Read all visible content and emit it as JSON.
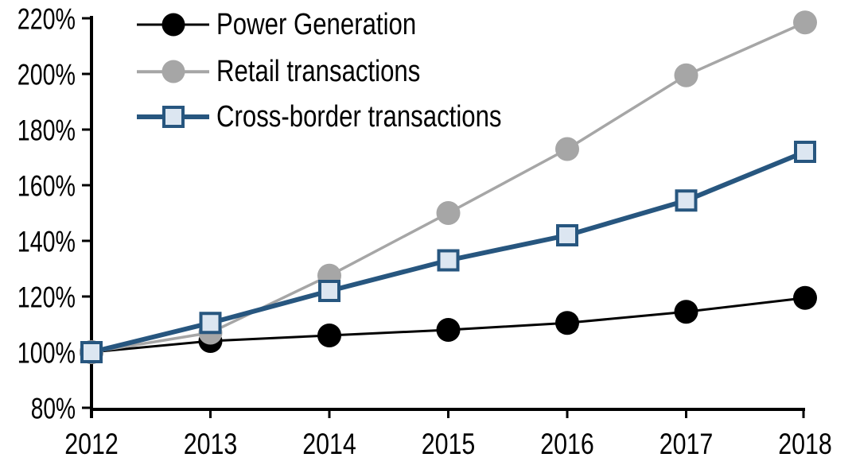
{
  "chart_data": {
    "type": "line",
    "title": "",
    "xlabel": "",
    "ylabel": "",
    "x_tick_labels": [
      "2012",
      "2013",
      "2014",
      "2015",
      "2016",
      "2017",
      "2018"
    ],
    "y_ticks": [
      80,
      100,
      120,
      140,
      160,
      180,
      200,
      220
    ],
    "y_tick_labels": [
      "80%",
      "100%",
      "120%",
      "140%",
      "160%",
      "180%",
      "200%",
      "220%"
    ],
    "ylim": [
      80,
      220
    ],
    "grid": false,
    "legend_position": "top-left",
    "background_color": "#FFFFFF",
    "axis_color": "#000000",
    "series": [
      {
        "name": "Power Generation",
        "color": "#000000",
        "marker": "circle",
        "marker_fill": "#000000",
        "line_width": 3,
        "values": [
          100,
          104,
          106,
          108,
          110.5,
          114.5,
          119.5
        ]
      },
      {
        "name": "Retail transactions",
        "color": "#A6A6A6",
        "marker": "circle",
        "marker_fill": "#A6A6A6",
        "line_width": 3.5,
        "values": [
          100,
          107,
          127.5,
          150,
          173,
          199.5,
          218.5
        ]
      },
      {
        "name": "Cross-border transactions",
        "color": "#27567F",
        "marker": "square",
        "marker_fill": "#DCE6F1",
        "line_width": 6,
        "values": [
          100,
          110.5,
          122,
          133,
          142,
          154.5,
          172
        ]
      }
    ]
  }
}
